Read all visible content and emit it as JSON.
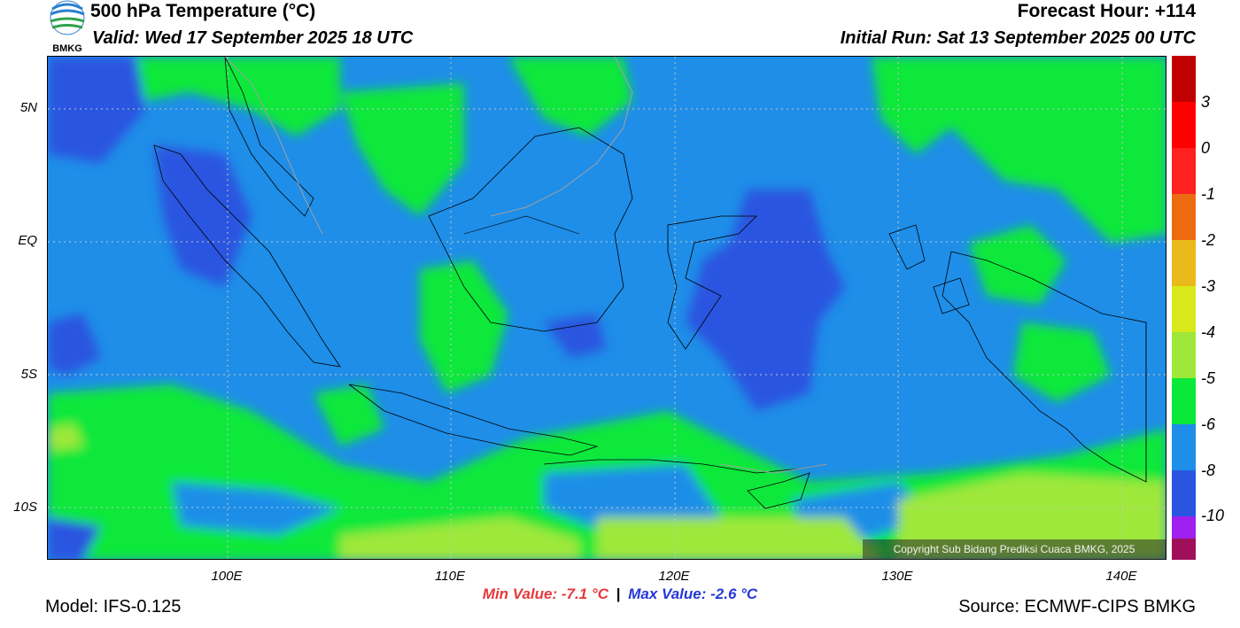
{
  "header": {
    "title": "500 hPa Temperature (°C)",
    "valid": "Valid: Wed 17 September 2025 18 UTC",
    "forecast_hour": "Forecast Hour: +114",
    "initial_run": "Initial Run: Sat 13 September 2025 00 UTC"
  },
  "logo": {
    "text": "BMKG",
    "icon": "bmkg-logo-icon"
  },
  "map": {
    "lat_labels": [
      "5N",
      "EQ",
      "5S",
      "10S"
    ],
    "lon_labels": [
      "100E",
      "110E",
      "120E",
      "130E",
      "140E"
    ],
    "copyright": "Copyright Sub Bidang Prediksi Cuaca BMKG, 2025"
  },
  "colorbar": {
    "labels": [
      "3",
      "0",
      "-1",
      "-2",
      "-3",
      "-4",
      "-5",
      "-6",
      "-8",
      "-10"
    ],
    "colors": [
      "#c00000",
      "#ff0000",
      "#ff2020",
      "#ec6a10",
      "#eab91a",
      "#d8e81a",
      "#9ee83a",
      "#0ae83a",
      "#1e8ee8",
      "#2a55e0",
      "#a020f0",
      "#a0105a"
    ]
  },
  "stats": {
    "min_label": "Min Value: -7.1 °C",
    "separator": "|",
    "max_label": "Max Value: -2.6 °C"
  },
  "footer": {
    "model": "Model: IFS-0.125",
    "source": "Source: ECMWF-CIPS BMKG"
  }
}
